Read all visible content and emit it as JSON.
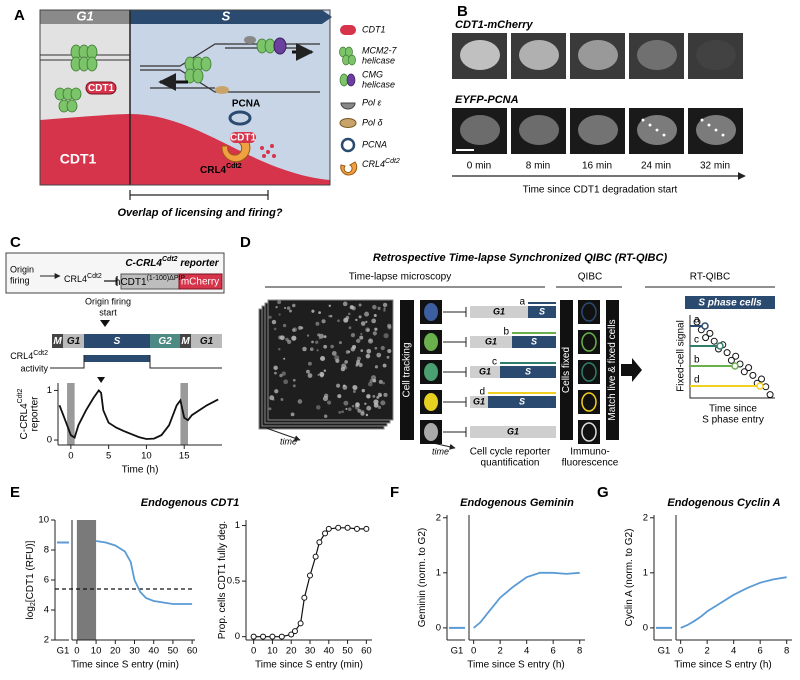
{
  "figure": {
    "panel_a": {
      "letter": "A",
      "phase_g1": "G1",
      "phase_s": "S",
      "cdt1_region": "CDT1",
      "cdt1_protein": "CDT1",
      "cdt1_crl4": "CDT1",
      "pcna": "PCNA",
      "crl4": "CRL4",
      "crl4_sup": "Cdt2",
      "legend": [
        {
          "lines": [
            "CDT1"
          ]
        },
        {
          "lines": [
            "MCM2-7",
            "helicase"
          ]
        },
        {
          "lines": [
            "CMG",
            "helicase"
          ]
        },
        {
          "lines": [
            "Pol ε"
          ]
        },
        {
          "lines": [
            "Pol δ"
          ]
        },
        {
          "lines": [
            "PCNA"
          ]
        },
        {
          "lines": [
            "CRL4"
          ],
          "sup": "Cdt2"
        }
      ],
      "bracket_caption": "Overlap of licensing and firing?"
    },
    "panel_b": {
      "letter": "B",
      "rows": [
        "CDT1-mCherry",
        "EYFP-PCNA"
      ],
      "times": [
        "0 min",
        "8 min",
        "16 min",
        "24 min",
        "32 min"
      ],
      "axis_label": "Time since CDT1 degradation start"
    },
    "panel_c": {
      "letter": "C",
      "origin_firing": [
        "Origin",
        "firing"
      ],
      "crl4": "CRL4",
      "crl4_sup": "Cdt2",
      "reporter_title": {
        "pre": "C-CRL4",
        "sup": "Cdt2",
        "post": " reporter"
      },
      "construct": {
        "hcdt1": "hCDT1",
        "hcdt1_sup": "(1-100)ΔPIP",
        "mcherry": "mCherry"
      },
      "firing_start": [
        "Origin firing",
        "start"
      ],
      "phases": [
        "M",
        "G1",
        "S",
        "G2",
        "M",
        "G1"
      ],
      "activity_label": {
        "text": "CRL4",
        "sup": "Cdt2",
        "line2": "activity"
      },
      "plot": {
        "type": "line",
        "ylabel": {
          "pre": "C-CRL4",
          "sup": "Cdt2",
          "line2": "reporter"
        },
        "xlabel": "Time (h)",
        "color": "#111111",
        "xlim": [
          -1.7,
          20
        ],
        "ylim": [
          -0.1,
          1.15
        ],
        "xticks": [
          0,
          5,
          10,
          15
        ],
        "yticks": [
          0,
          1
        ],
        "mitosis_bands": [
          [
            -0.5,
            0.5
          ],
          [
            14.5,
            15.5
          ]
        ],
        "firing_marker": 4,
        "x": [
          -1.5,
          -1,
          -0.5,
          0,
          0.5,
          1,
          2,
          3,
          3.7,
          4,
          4.3,
          5,
          6,
          7,
          8,
          9,
          10,
          11,
          12,
          13,
          14,
          14.5,
          15,
          15.5,
          16,
          17,
          18,
          19.5
        ],
        "y": [
          0.7,
          0.5,
          0.3,
          0.1,
          0.05,
          0.3,
          0.6,
          0.85,
          1.0,
          0.95,
          0.6,
          0.35,
          0.25,
          0.18,
          0.12,
          0.06,
          0.02,
          0.03,
          0.1,
          0.3,
          0.7,
          0.8,
          0.45,
          0.4,
          0.5,
          0.6,
          0.7,
          0.82
        ]
      }
    },
    "panel_d": {
      "letter": "D",
      "title": "Retrospective Time-lapse Synchronized QIBC (RT-QIBC)",
      "sections": [
        "Time-lapse microscopy",
        "QIBC",
        "RT-QIBC"
      ],
      "cell_tracking": "Cell tracking",
      "time_labels": [
        "time",
        "time"
      ],
      "tracks": [
        {
          "g1": "G1",
          "s": "S",
          "label": "a",
          "color": "#2b4a70"
        },
        {
          "g1": "G1",
          "s": "S",
          "label": "b",
          "color": "#6ab04c"
        },
        {
          "g1": "G1",
          "s": "S",
          "label": "c",
          "color": "#2f7d6b"
        },
        {
          "g1": "G1",
          "s": "S",
          "label": "d",
          "color": "#f0d020"
        },
        {
          "g1": "G1"
        }
      ],
      "quantification": [
        "Cell cycle reporter",
        "quantification"
      ],
      "cells_fixed": "Cells fixed",
      "immuno": [
        "Immuno-",
        "fluorescence"
      ],
      "match": "Match live & fixed cells",
      "s_phase_cells": "S phase cells",
      "fixed_signal": "Fixed-cell signal",
      "time_since": [
        "Time since",
        "S phase entry"
      ]
    },
    "panel_e": {
      "letter": "E",
      "title": "Endogenous CDT1",
      "plots": [
        {
          "type": "line",
          "ylabel": {
            "pre": "log",
            "sub": "2",
            "post": "[CDT1 (RFU)]"
          },
          "xlabel": "Time since S entry (min)",
          "group_label": "G1",
          "color": "#5b9bd5",
          "xlim": [
            -1.5,
            61.5
          ],
          "ylim": [
            2,
            10
          ],
          "xticks": [
            0,
            10,
            20,
            30,
            40,
            50,
            60
          ],
          "yticks": [
            2,
            4,
            6,
            8,
            10
          ],
          "g1_value": 8.5,
          "threshold": 5.4,
          "shaded": [
            0,
            10
          ],
          "x": [
            10,
            15,
            20,
            25,
            28,
            30,
            33,
            36,
            40,
            45,
            50,
            55,
            60
          ],
          "y": [
            8.6,
            8.5,
            8.3,
            7.9,
            7.2,
            6,
            5.2,
            4.8,
            4.6,
            4.5,
            4.4,
            4.4,
            4.4
          ]
        },
        {
          "type": "line",
          "ylabel": {
            "pre": "Prop. cells CDT1 fully deg."
          },
          "xlabel": "Time since S entry (min)",
          "color": "#111111",
          "markers": true,
          "xlim": [
            -3,
            63
          ],
          "ylim": [
            -0.03,
            1.05
          ],
          "xticks": [
            0,
            10,
            20,
            30,
            40,
            50,
            60
          ],
          "yticks": [
            0,
            0.5,
            1
          ],
          "x": [
            0,
            5,
            10,
            15,
            20,
            22,
            25,
            27,
            30,
            33,
            35,
            38,
            40,
            45,
            50,
            55,
            60
          ],
          "y": [
            0,
            0,
            0,
            0,
            0.02,
            0.05,
            0.12,
            0.35,
            0.55,
            0.72,
            0.85,
            0.93,
            0.97,
            0.98,
            0.98,
            0.97,
            0.97
          ]
        }
      ]
    },
    "panel_f": {
      "letter": "F",
      "title": "Endogenous Geminin",
      "plot": {
        "type": "line",
        "ylabel": {
          "pre": "Geminin (norm. to G2)"
        },
        "xlabel": "Time since S entry (h)",
        "group_label": "G1",
        "color": "#5b9bd5",
        "xlim": [
          -0.2,
          8.4
        ],
        "ylim": [
          -0.22,
          2.05
        ],
        "xticks": [
          0,
          2,
          4,
          6,
          8
        ],
        "yticks": [
          0,
          1,
          2
        ],
        "g1_value": 0,
        "x": [
          0,
          0.5,
          1,
          1.5,
          2,
          3,
          4,
          5,
          6,
          7,
          8
        ],
        "y": [
          0,
          0.1,
          0.25,
          0.4,
          0.55,
          0.75,
          0.92,
          1.0,
          1.0,
          0.98,
          1.0
        ]
      }
    },
    "panel_g": {
      "letter": "G",
      "title": "Endogenous Cyclin A",
      "plot": {
        "type": "line",
        "ylabel": {
          "pre": "Cyclin A (norm. to G2)"
        },
        "xlabel": "Time since S entry (h)",
        "group_label": "G1",
        "color": "#5b9bd5",
        "xlim": [
          -0.2,
          8.4
        ],
        "ylim": [
          -0.22,
          2.05
        ],
        "xticks": [
          0,
          2,
          4,
          6,
          8
        ],
        "yticks": [
          0,
          1,
          2
        ],
        "g1_value": 0,
        "x": [
          0,
          0.5,
          1,
          1.5,
          2,
          3,
          4,
          5,
          6,
          7,
          8
        ],
        "y": [
          0,
          0.05,
          0.12,
          0.2,
          0.3,
          0.45,
          0.6,
          0.72,
          0.82,
          0.88,
          0.92
        ]
      }
    }
  }
}
